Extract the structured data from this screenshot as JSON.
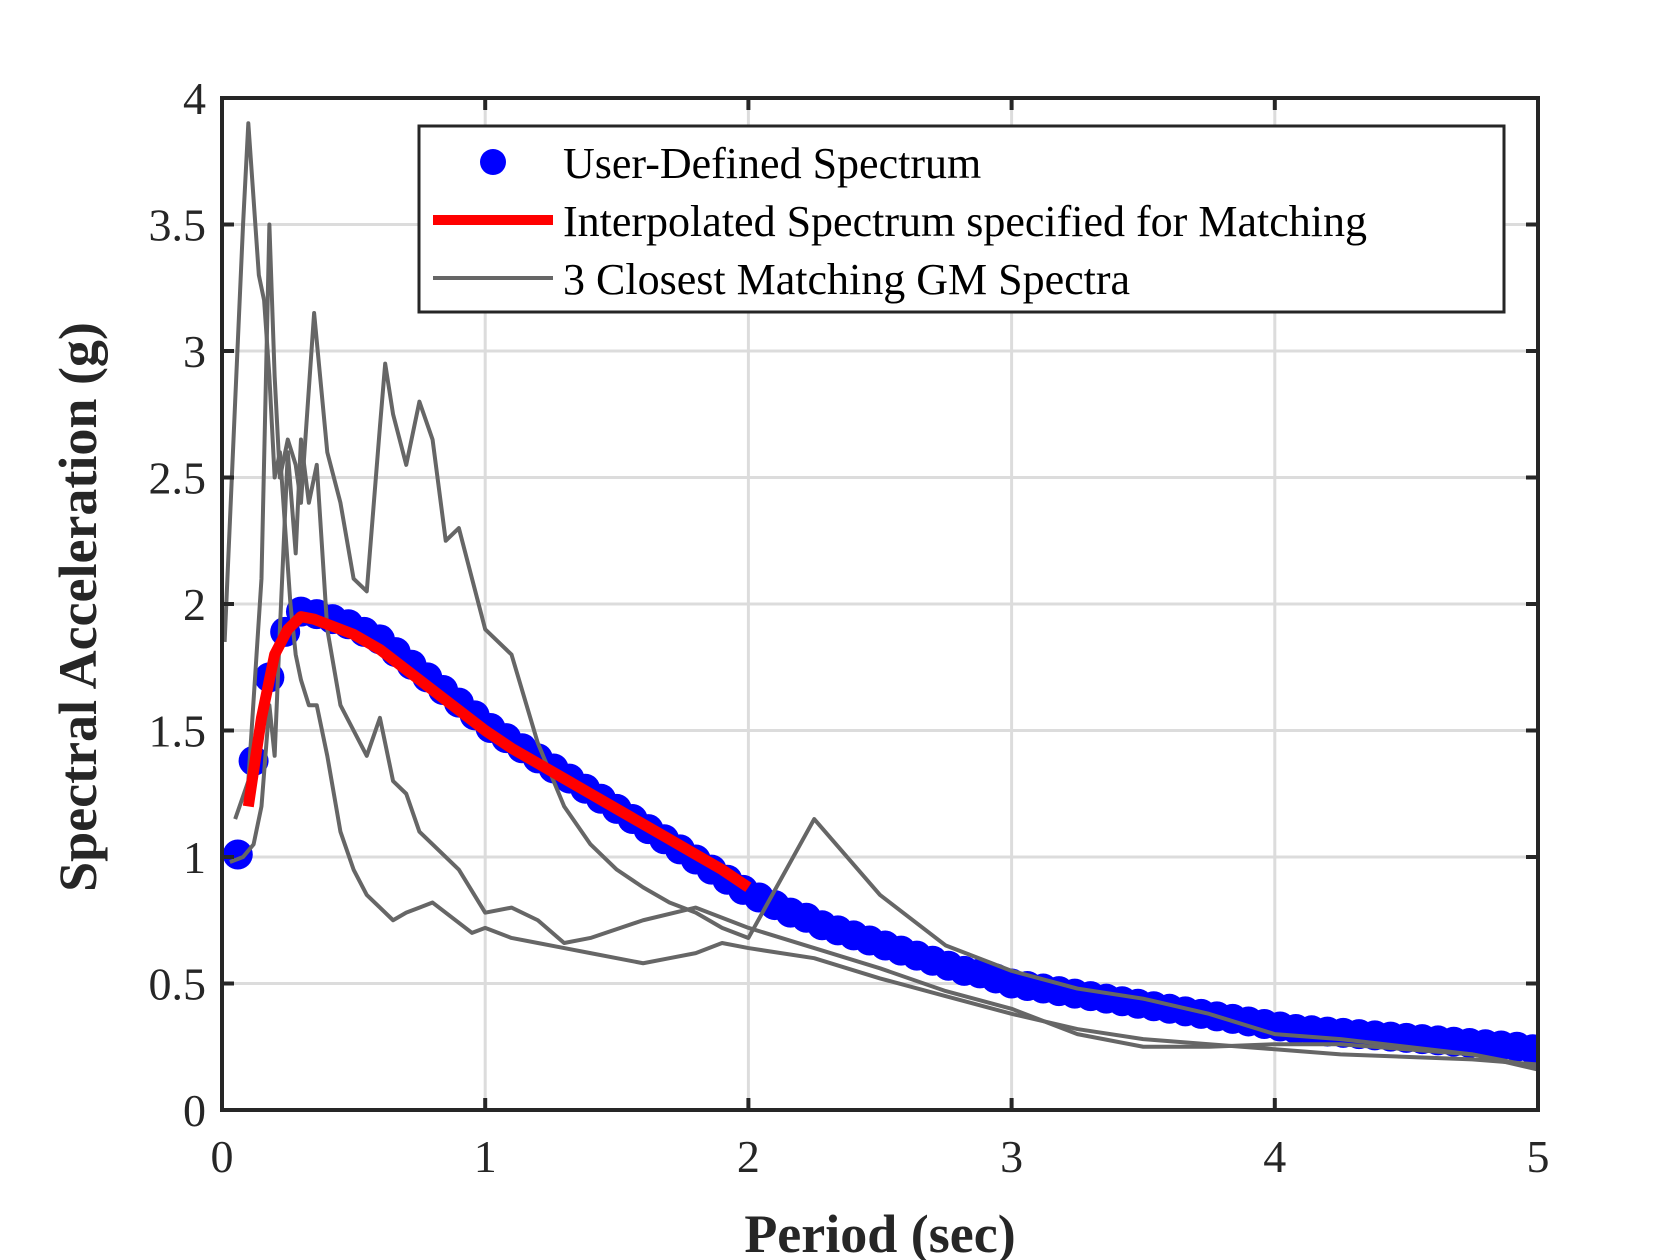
{
  "chart_data": {
    "type": "line",
    "title": "",
    "xlabel": "Period (sec)",
    "ylabel": "Spectral Acceleration (g)",
    "xlim": [
      0,
      5
    ],
    "ylim": [
      0,
      4
    ],
    "xticks": [
      0,
      1,
      2,
      3,
      4,
      5
    ],
    "yticks": [
      0,
      0.5,
      1,
      1.5,
      2,
      2.5,
      3,
      3.5,
      4
    ],
    "xtick_labels": [
      "0",
      "1",
      "2",
      "3",
      "4",
      "5"
    ],
    "ytick_labels": [
      "0",
      "0.5",
      "1",
      "1.5",
      "2",
      "2.5",
      "3",
      "3.5",
      "4"
    ],
    "grid": true,
    "legend_position": "top-right",
    "colors": {
      "user": "#0000ff",
      "interp": "#ff0000",
      "gm": "#666666",
      "axes": "#262626",
      "grid": "#dcdcdc"
    },
    "series": [
      {
        "name": "User-Defined Spectrum",
        "kind": "markers",
        "x": [
          0.06,
          0.12,
          0.18,
          0.24,
          0.3,
          0.36,
          0.42,
          0.48,
          0.54,
          0.6,
          0.66,
          0.72,
          0.78,
          0.84,
          0.9,
          0.96,
          1.02,
          1.08,
          1.14,
          1.2,
          1.26,
          1.32,
          1.38,
          1.44,
          1.5,
          1.56,
          1.62,
          1.68,
          1.74,
          1.8,
          1.86,
          1.92,
          1.98,
          2.04,
          2.1,
          2.16,
          2.22,
          2.28,
          2.34,
          2.4,
          2.46,
          2.52,
          2.58,
          2.64,
          2.7,
          2.76,
          2.82,
          2.88,
          2.94,
          3.0,
          3.06,
          3.12,
          3.18,
          3.24,
          3.3,
          3.36,
          3.42,
          3.48,
          3.54,
          3.6,
          3.66,
          3.72,
          3.78,
          3.84,
          3.9,
          3.96,
          4.02,
          4.08,
          4.14,
          4.2,
          4.26,
          4.32,
          4.38,
          4.44,
          4.5,
          4.56,
          4.62,
          4.68,
          4.74,
          4.8,
          4.86,
          4.92,
          4.98
        ],
        "y": [
          1.01,
          1.38,
          1.71,
          1.89,
          1.97,
          1.96,
          1.94,
          1.92,
          1.89,
          1.86,
          1.81,
          1.76,
          1.71,
          1.66,
          1.61,
          1.56,
          1.51,
          1.47,
          1.43,
          1.39,
          1.35,
          1.31,
          1.27,
          1.23,
          1.19,
          1.15,
          1.11,
          1.07,
          1.03,
          0.99,
          0.95,
          0.91,
          0.87,
          0.84,
          0.81,
          0.78,
          0.76,
          0.73,
          0.71,
          0.69,
          0.67,
          0.65,
          0.63,
          0.61,
          0.59,
          0.57,
          0.55,
          0.54,
          0.52,
          0.5,
          0.49,
          0.48,
          0.47,
          0.46,
          0.45,
          0.44,
          0.43,
          0.42,
          0.41,
          0.4,
          0.39,
          0.38,
          0.37,
          0.36,
          0.35,
          0.34,
          0.33,
          0.32,
          0.315,
          0.31,
          0.305,
          0.3,
          0.295,
          0.29,
          0.285,
          0.28,
          0.275,
          0.27,
          0.265,
          0.26,
          0.255,
          0.25,
          0.24
        ]
      },
      {
        "name": "Interpolated Spectrum specified for Matching",
        "kind": "line",
        "x": [
          0.1,
          0.15,
          0.2,
          0.25,
          0.3,
          0.35,
          0.4,
          0.5,
          0.6,
          0.7,
          0.8,
          0.9,
          1.0,
          1.1,
          1.2,
          1.3,
          1.4,
          1.5,
          1.6,
          1.7,
          1.8,
          1.9,
          2.0
        ],
        "y": [
          1.2,
          1.55,
          1.8,
          1.9,
          1.95,
          1.94,
          1.92,
          1.88,
          1.82,
          1.74,
          1.66,
          1.58,
          1.5,
          1.43,
          1.37,
          1.31,
          1.25,
          1.19,
          1.13,
          1.07,
          1.01,
          0.95,
          0.88
        ]
      },
      {
        "name": "3 Closest Matching GM Spectra",
        "kind": "line",
        "x": [
          0.01,
          0.05,
          0.08,
          0.1,
          0.12,
          0.14,
          0.16,
          0.18,
          0.2,
          0.22,
          0.24,
          0.26,
          0.28,
          0.3,
          0.33,
          0.36,
          0.4,
          0.45,
          0.5,
          0.55,
          0.6,
          0.65,
          0.7,
          0.75,
          0.8,
          0.85,
          0.9,
          0.95,
          1.0,
          1.1,
          1.2,
          1.3,
          1.4,
          1.5,
          1.6,
          1.7,
          1.8,
          1.9,
          2.0,
          2.25,
          2.5,
          2.75,
          3.0,
          3.25,
          3.5,
          3.75,
          4.0,
          4.25,
          4.5,
          4.75,
          5.0
        ],
        "y": [
          1.85,
          2.8,
          3.5,
          3.9,
          3.6,
          3.3,
          3.2,
          2.9,
          2.5,
          2.6,
          2.3,
          2.0,
          1.8,
          1.7,
          1.6,
          1.6,
          1.4,
          1.1,
          0.95,
          0.85,
          0.8,
          0.75,
          0.78,
          0.8,
          0.82,
          0.78,
          0.74,
          0.7,
          0.72,
          0.68,
          0.66,
          0.64,
          0.62,
          0.6,
          0.58,
          0.6,
          0.62,
          0.66,
          0.64,
          0.6,
          0.52,
          0.45,
          0.38,
          0.32,
          0.28,
          0.26,
          0.24,
          0.22,
          0.21,
          0.2,
          0.18
        ]
      },
      {
        "name": "",
        "kind": "line",
        "x": [
          0.05,
          0.1,
          0.15,
          0.18,
          0.2,
          0.22,
          0.25,
          0.28,
          0.3,
          0.35,
          0.4,
          0.45,
          0.5,
          0.55,
          0.6,
          0.62,
          0.65,
          0.7,
          0.75,
          0.8,
          0.85,
          0.9,
          0.95,
          1.0,
          1.1,
          1.2,
          1.3,
          1.4,
          1.5,
          1.6,
          1.7,
          1.8,
          1.9,
          2.0,
          2.25,
          2.5,
          2.75,
          3.0,
          3.25,
          3.5,
          3.75,
          4.0,
          4.25,
          4.5,
          4.75,
          5.0
        ],
        "y": [
          1.15,
          1.3,
          2.1,
          3.5,
          2.9,
          2.5,
          2.65,
          2.55,
          2.4,
          3.15,
          2.6,
          2.4,
          2.1,
          2.05,
          2.7,
          2.95,
          2.75,
          2.55,
          2.8,
          2.65,
          2.25,
          2.3,
          2.1,
          1.9,
          1.8,
          1.45,
          1.2,
          1.05,
          0.95,
          0.88,
          0.82,
          0.78,
          0.72,
          0.68,
          1.15,
          0.85,
          0.65,
          0.55,
          0.48,
          0.44,
          0.38,
          0.3,
          0.28,
          0.25,
          0.22,
          0.16
        ]
      },
      {
        "name": "",
        "kind": "line",
        "x": [
          0.03,
          0.08,
          0.12,
          0.15,
          0.18,
          0.2,
          0.22,
          0.25,
          0.28,
          0.3,
          0.33,
          0.36,
          0.4,
          0.45,
          0.5,
          0.55,
          0.6,
          0.65,
          0.7,
          0.75,
          0.8,
          0.9,
          1.0,
          1.1,
          1.2,
          1.3,
          1.4,
          1.6,
          1.8,
          2.0,
          2.25,
          2.5,
          2.75,
          3.0,
          3.25,
          3.5,
          3.75,
          4.0,
          4.25,
          4.5,
          4.75,
          5.0
        ],
        "y": [
          0.98,
          1.0,
          1.05,
          1.2,
          1.6,
          1.4,
          1.9,
          2.6,
          2.2,
          2.65,
          2.4,
          2.55,
          1.9,
          1.6,
          1.5,
          1.4,
          1.55,
          1.3,
          1.25,
          1.1,
          1.05,
          0.95,
          0.78,
          0.8,
          0.75,
          0.66,
          0.68,
          0.75,
          0.8,
          0.72,
          0.64,
          0.56,
          0.47,
          0.4,
          0.3,
          0.25,
          0.25,
          0.26,
          0.26,
          0.24,
          0.22,
          0.17
        ]
      }
    ]
  }
}
